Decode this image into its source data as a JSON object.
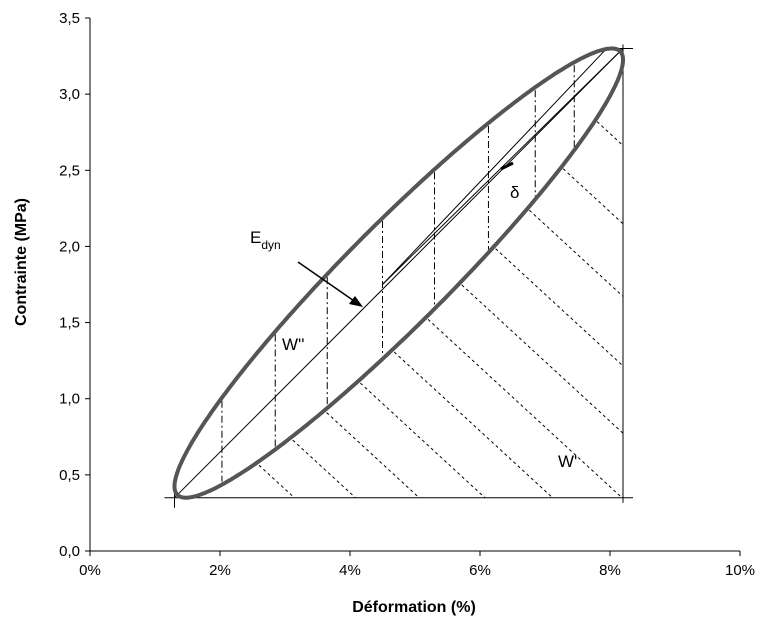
{
  "chart_data": {
    "type": "line",
    "xlabel": "Déformation (%)",
    "ylabel": "Contrainte (MPa)",
    "xlim": [
      0,
      10
    ],
    "ylim": [
      0,
      3.5
    ],
    "x_ticks": [
      "0%",
      "2%",
      "4%",
      "6%",
      "8%",
      "10%"
    ],
    "y_ticks": [
      "0,0",
      "0,5",
      "1,0",
      "1,5",
      "2,0",
      "2,5",
      "3,0",
      "3,5"
    ],
    "grid": false,
    "legend": "none",
    "hysteresis_loop": {
      "center": [
        4.75,
        1.825
      ],
      "strain_amplitude": 3.45,
      "stress_amplitude": 1.475,
      "phase_shift_rad": 0.32,
      "min_point": [
        1.3,
        0.35
      ],
      "max_point": [
        8.2,
        3.3
      ]
    },
    "modulus_line": {
      "from": [
        1.3,
        0.35
      ],
      "to": [
        8.2,
        3.3
      ]
    },
    "delta_lines": [
      {
        "from": [
          4.5,
          1.75
        ],
        "to": [
          8.2,
          3.3
        ]
      },
      {
        "from": [
          4.5,
          1.75
        ],
        "to": [
          7.95,
          3.3
        ]
      }
    ],
    "reference_lines": {
      "x": 8.2,
      "y_min": 0.35,
      "y_max": 3.3,
      "x_min": 1.3
    },
    "annotations": {
      "edyn_main": "E",
      "edyn_sub": "dyn",
      "delta": "δ",
      "w_double_prime": "W''",
      "w_prime": "W'"
    },
    "colors": {
      "loop": "#555555",
      "lines": "#000000"
    }
  }
}
